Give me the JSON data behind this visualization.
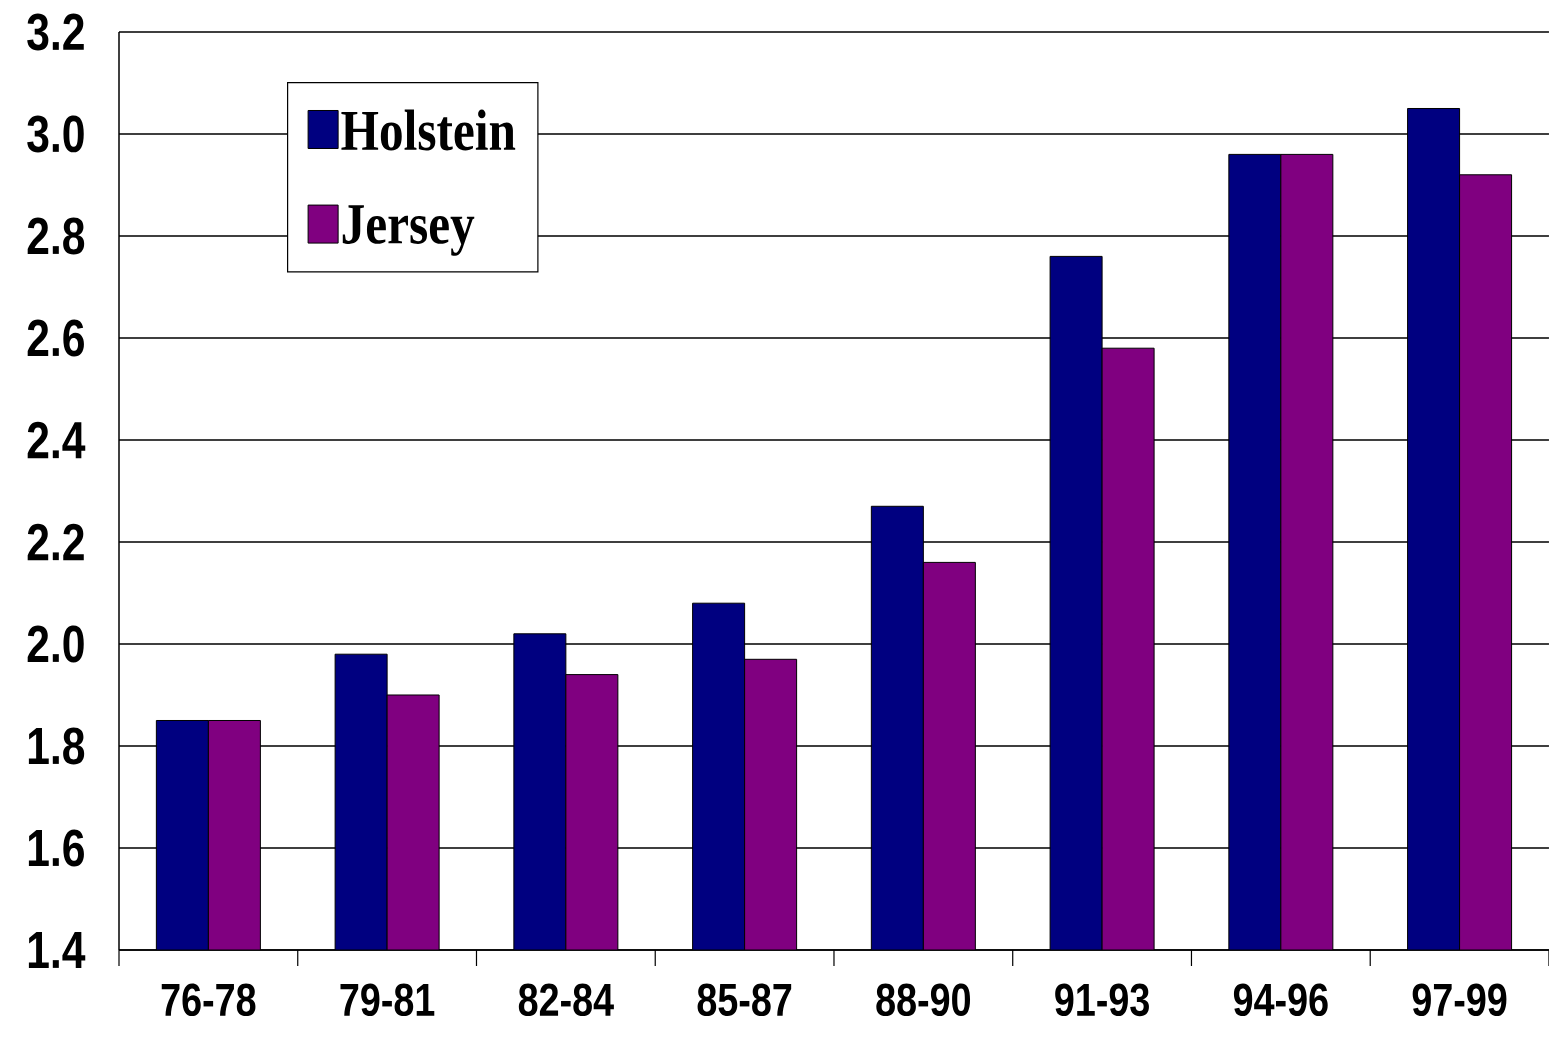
{
  "chart_data": {
    "type": "bar",
    "categories": [
      "76-78",
      "79-81",
      "82-84",
      "85-87",
      "88-90",
      "91-93",
      "94-96",
      "97-99"
    ],
    "series": [
      {
        "name": "Holstein",
        "color": "#000080",
        "values": [
          1.85,
          1.98,
          2.02,
          2.08,
          2.27,
          2.76,
          2.96,
          3.05
        ]
      },
      {
        "name": "Jersey",
        "color": "#800080",
        "values": [
          1.85,
          1.9,
          1.94,
          1.97,
          2.16,
          2.58,
          2.96,
          2.92
        ]
      }
    ],
    "ylim": [
      1.4,
      3.2
    ],
    "yticks": [
      1.4,
      1.6,
      1.8,
      {
        "value": 2.0,
        "label": "2.0"
      },
      2.2,
      2.4,
      2.6,
      2.8,
      {
        "value": 3.0,
        "label": "3.0"
      },
      3.2
    ],
    "grid": "y",
    "legend": "top left"
  }
}
